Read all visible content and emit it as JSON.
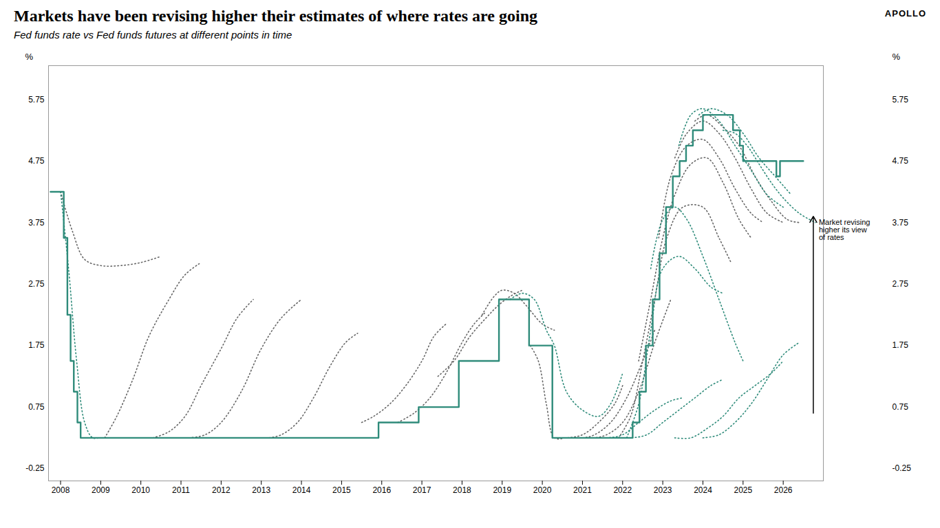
{
  "chart_data": {
    "type": "line",
    "title": "Markets have been revising higher their estimates of where rates are going",
    "subtitle": "Fed funds rate vs Fed funds futures at different points in time",
    "brand": "APOLLO",
    "ylabel": "%",
    "y2label": "%",
    "xlim": [
      2007.7,
      2027.0
    ],
    "xticks": [
      2008,
      2009,
      2010,
      2011,
      2012,
      2013,
      2014,
      2015,
      2016,
      2017,
      2018,
      2019,
      2020,
      2021,
      2022,
      2023,
      2024,
      2025,
      2026
    ],
    "ylim": [
      -0.45,
      6.3
    ],
    "yticks": [
      -0.25,
      0.75,
      1.75,
      2.75,
      3.75,
      4.75,
      5.75
    ],
    "y2lim": [
      -0.45,
      6.3
    ],
    "y2ticks": [
      -0.25,
      0.75,
      1.75,
      2.75,
      3.75,
      4.75,
      5.75
    ],
    "grid": false,
    "annotations": [
      {
        "text": "Market revising\nhigher its view\nof rates",
        "x": 2026.75,
        "y": 3.8,
        "arrow": {
          "x": 2026.75,
          "y1": 0.65,
          "y2": 3.85
        }
      }
    ],
    "series": [
      {
        "type": "line",
        "color": "#666666",
        "line_style": "dotted",
        "x": [
          2008.0,
          2008.3,
          2008.6,
          2009.0,
          2009.5,
          2010.0,
          2010.5
        ],
        "values": [
          4.25,
          3.6,
          3.15,
          3.05,
          3.05,
          3.1,
          3.2
        ]
      },
      {
        "type": "line",
        "color": "#666666",
        "line_style": "dotted",
        "x": [
          2009.1,
          2009.4,
          2009.8,
          2010.2,
          2010.7,
          2011.1,
          2011.5
        ],
        "values": [
          0.25,
          0.6,
          1.2,
          1.9,
          2.5,
          2.9,
          3.1
        ]
      },
      {
        "type": "line",
        "color": "#666666",
        "line_style": "dotted",
        "x": [
          2010.3,
          2010.7,
          2011.1,
          2011.5,
          2012.0,
          2012.4,
          2012.8
        ],
        "values": [
          0.25,
          0.35,
          0.6,
          1.1,
          1.7,
          2.2,
          2.5
        ]
      },
      {
        "type": "line",
        "color": "#666666",
        "line_style": "dotted",
        "x": [
          2011.2,
          2011.6,
          2012.0,
          2012.5,
          2013.0,
          2013.5,
          2014.0
        ],
        "values": [
          0.25,
          0.3,
          0.5,
          1.0,
          1.7,
          2.2,
          2.5
        ]
      },
      {
        "type": "line",
        "color": "#666666",
        "line_style": "dotted",
        "x": [
          2013.2,
          2013.5,
          2013.9,
          2014.3,
          2014.7,
          2015.1,
          2015.4
        ],
        "values": [
          0.25,
          0.3,
          0.5,
          0.9,
          1.4,
          1.8,
          1.95
        ]
      },
      {
        "type": "line",
        "color": "#666666",
        "line_style": "dotted",
        "x": [
          2015.5,
          2015.8,
          2016.2,
          2016.6,
          2017.0,
          2017.3,
          2017.6
        ],
        "values": [
          0.5,
          0.6,
          0.8,
          1.1,
          1.5,
          1.9,
          2.1
        ]
      },
      {
        "type": "line",
        "color": "#666666",
        "line_style": "dotted",
        "x": [
          2016.4,
          2016.8,
          2017.2,
          2017.6,
          2018.0,
          2018.3,
          2018.6
        ],
        "values": [
          0.5,
          0.65,
          0.9,
          1.3,
          1.8,
          2.1,
          2.3
        ]
      },
      {
        "type": "line",
        "color": "#666666",
        "line_style": "dotted",
        "x": [
          2017.4,
          2017.8,
          2018.2,
          2018.6,
          2018.9,
          2019.2,
          2019.5
        ],
        "values": [
          1.25,
          1.5,
          1.9,
          2.2,
          2.4,
          2.55,
          2.65
        ]
      },
      {
        "type": "line",
        "color": "#666666",
        "line_style": "dotted",
        "x": [
          2018.5,
          2018.8,
          2019.0,
          2019.3,
          2019.6,
          2020.0,
          2020.3
        ],
        "values": [
          2.25,
          2.55,
          2.65,
          2.6,
          2.4,
          2.1,
          2.0
        ]
      },
      {
        "type": "line",
        "color": "#666666",
        "line_style": "dotted",
        "x": [
          2019.7,
          2019.9,
          2020.1,
          2020.3,
          2020.6,
          2021.0,
          2021.4,
          2021.8,
          2022.0
        ],
        "values": [
          1.75,
          1.5,
          0.8,
          0.25,
          0.25,
          0.3,
          0.5,
          0.8,
          1.1
        ]
      },
      {
        "type": "line",
        "color": "#666666",
        "line_style": "dotted",
        "x": [
          2020.4,
          2020.7,
          2021.0,
          2021.3,
          2021.7,
          2022.1,
          2022.5,
          2022.8
        ],
        "values": [
          0.25,
          0.25,
          0.25,
          0.3,
          0.5,
          0.9,
          1.5,
          2.0
        ]
      },
      {
        "type": "line",
        "color": "#666666",
        "line_style": "dotted",
        "x": [
          2021.0,
          2021.3,
          2021.6,
          2022.0,
          2022.4,
          2022.8,
          2023.2
        ],
        "values": [
          0.25,
          0.25,
          0.3,
          0.5,
          1.0,
          1.8,
          2.5
        ]
      },
      {
        "type": "line",
        "color": "#666666",
        "line_style": "dotted",
        "x": [
          2021.9,
          2022.2,
          2022.5,
          2022.8,
          2023.1,
          2023.5,
          2024.0,
          2024.4,
          2024.7
        ],
        "values": [
          0.25,
          0.6,
          1.5,
          2.5,
          3.5,
          4.0,
          4.0,
          3.5,
          3.1
        ]
      },
      {
        "type": "line",
        "color": "#666666",
        "line_style": "dotted",
        "x": [
          2022.4,
          2022.7,
          2023.0,
          2023.3,
          2023.7,
          2024.1,
          2024.5,
          2024.9,
          2025.2
        ],
        "values": [
          1.5,
          2.5,
          3.5,
          4.2,
          4.7,
          4.8,
          4.4,
          3.8,
          3.5
        ]
      },
      {
        "type": "line",
        "color": "#666666",
        "line_style": "dotted",
        "x": [
          2022.9,
          2023.2,
          2023.6,
          2024.0,
          2024.4,
          2024.8,
          2025.2,
          2025.5
        ],
        "values": [
          3.5,
          4.5,
          5.0,
          5.1,
          4.8,
          4.3,
          3.9,
          3.75
        ]
      },
      {
        "type": "line",
        "color": "#666666",
        "line_style": "dotted",
        "x": [
          2023.3,
          2023.6,
          2024.0,
          2024.4,
          2024.8,
          2025.2,
          2025.6,
          2026.0
        ],
        "values": [
          4.8,
          5.2,
          5.4,
          5.2,
          4.8,
          4.3,
          3.9,
          3.75
        ]
      },
      {
        "type": "line",
        "color": "#666666",
        "line_style": "dotted",
        "x": [
          2023.8,
          2024.1,
          2024.5,
          2024.9,
          2025.3,
          2025.7,
          2026.1,
          2026.4
        ],
        "values": [
          5.4,
          5.5,
          5.3,
          5.0,
          4.5,
          4.1,
          3.8,
          3.75
        ]
      },
      {
        "type": "line",
        "color": "#2E8B7A",
        "line_style": "dotted",
        "x": [
          2008.0,
          2008.2,
          2008.4,
          2008.6,
          2008.8,
          2009.0,
          2009.3
        ],
        "values": [
          4.25,
          3.0,
          1.5,
          0.5,
          0.25,
          0.25,
          0.25
        ]
      },
      {
        "type": "line",
        "color": "#2E8B7A",
        "line_style": "dotted",
        "x": [
          2019.2,
          2019.5,
          2019.8,
          2020.1,
          2020.3,
          2020.6,
          2021.0,
          2021.4,
          2021.7,
          2022.0
        ],
        "values": [
          2.5,
          2.6,
          2.5,
          2.0,
          1.75,
          1.0,
          0.7,
          0.6,
          0.8,
          1.3
        ]
      },
      {
        "type": "line",
        "color": "#2E8B7A",
        "line_style": "dotted",
        "x": [
          2022.1,
          2022.4,
          2022.7,
          2023.0,
          2023.4,
          2023.8,
          2024.2,
          2024.5
        ],
        "values": [
          0.25,
          0.8,
          2.0,
          3.0,
          3.2,
          3.0,
          2.7,
          2.6
        ]
      },
      {
        "type": "line",
        "color": "#2E8B7A",
        "line_style": "dotted",
        "x": [
          2022.7,
          2023.0,
          2023.3,
          2023.6,
          2024.0,
          2024.4,
          2024.8,
          2025.0
        ],
        "values": [
          3.0,
          3.8,
          4.0,
          3.8,
          3.2,
          2.5,
          1.8,
          1.5
        ]
      },
      {
        "type": "line",
        "color": "#2E8B7A",
        "line_style": "dotted",
        "x": [
          2023.4,
          2023.7,
          2024.0,
          2024.4,
          2024.8,
          2025.2,
          2025.6,
          2026.0
        ],
        "values": [
          5.0,
          5.5,
          5.6,
          5.4,
          5.0,
          4.6,
          4.2,
          4.0
        ]
      },
      {
        "type": "line",
        "color": "#2E8B7A",
        "line_style": "dotted",
        "x": [
          2023.9,
          2024.2,
          2024.6,
          2025.0,
          2025.4,
          2025.8,
          2026.2
        ],
        "values": [
          5.5,
          5.6,
          5.5,
          5.2,
          4.8,
          4.5,
          4.2
        ]
      },
      {
        "type": "line",
        "color": "#2E8B7A",
        "line_style": "dotted",
        "x": [
          2024.5,
          2024.8,
          2025.1,
          2025.4,
          2025.7,
          2026.0,
          2026.4,
          2026.8
        ],
        "values": [
          5.25,
          5.2,
          5.0,
          4.7,
          4.4,
          4.15,
          3.9,
          3.75
        ]
      },
      {
        "type": "line",
        "color": "#2E8B7A",
        "line_style": "dotted",
        "x": [
          2020.9,
          2021.2,
          2021.6,
          2022.0,
          2022.4,
          2022.8,
          2023.2,
          2023.5
        ],
        "values": [
          0.25,
          0.25,
          0.25,
          0.3,
          0.5,
          0.7,
          0.85,
          0.9
        ]
      },
      {
        "type": "line",
        "color": "#2E8B7A",
        "line_style": "dotted",
        "x": [
          2021.8,
          2022.2,
          2022.6,
          2023.0,
          2023.4,
          2023.8,
          2024.2,
          2024.5
        ],
        "values": [
          0.25,
          0.25,
          0.3,
          0.5,
          0.7,
          0.9,
          1.1,
          1.2
        ]
      },
      {
        "type": "line",
        "color": "#2E8B7A",
        "line_style": "dotted",
        "x": [
          2023.3,
          2023.7,
          2024.1,
          2024.5,
          2024.9,
          2025.3,
          2025.7,
          2026.0
        ],
        "values": [
          0.25,
          0.25,
          0.4,
          0.6,
          0.9,
          1.1,
          1.3,
          1.5
        ]
      },
      {
        "type": "line",
        "color": "#2E8B7A",
        "line_style": "dotted",
        "x": [
          2024.0,
          2024.4,
          2024.8,
          2025.2,
          2025.6,
          2026.0,
          2026.4
        ],
        "values": [
          0.25,
          0.3,
          0.5,
          0.8,
          1.2,
          1.6,
          1.8
        ]
      },
      {
        "type": "step",
        "color": "#2E8B7A",
        "line_style": "solid",
        "x": [
          2007.75,
          2008.0,
          2008.08,
          2008.17,
          2008.25,
          2008.33,
          2008.42,
          2008.5,
          2008.58,
          2008.67,
          2008.75,
          2008.83,
          2008.92,
          2009.0,
          2015.75,
          2015.92,
          2016.75,
          2016.92,
          2017.75,
          2017.92,
          2018.75,
          2018.92,
          2019.17,
          2019.5,
          2019.67,
          2019.75,
          2020.17,
          2020.25,
          2022.17,
          2022.25,
          2022.42,
          2022.58,
          2022.75,
          2022.92,
          2023.08,
          2023.25,
          2023.42,
          2023.58,
          2023.75,
          2023.92,
          2024.0,
          2024.67,
          2024.75,
          2024.92,
          2025.0,
          2025.83,
          2025.92,
          2026.5
        ],
        "values": [
          4.25,
          4.25,
          3.5,
          2.25,
          1.5,
          1.0,
          0.5,
          0.25,
          0.25,
          0.25,
          0.25,
          0.25,
          0.25,
          0.25,
          0.25,
          0.5,
          0.5,
          0.75,
          0.75,
          1.5,
          1.5,
          2.5,
          2.5,
          2.5,
          1.75,
          1.75,
          1.75,
          0.25,
          0.25,
          0.5,
          1.0,
          1.75,
          2.5,
          3.25,
          4.0,
          4.5,
          4.75,
          5.0,
          5.25,
          5.25,
          5.5,
          5.5,
          5.25,
          5.0,
          4.75,
          4.5,
          4.75,
          4.75
        ]
      }
    ]
  }
}
